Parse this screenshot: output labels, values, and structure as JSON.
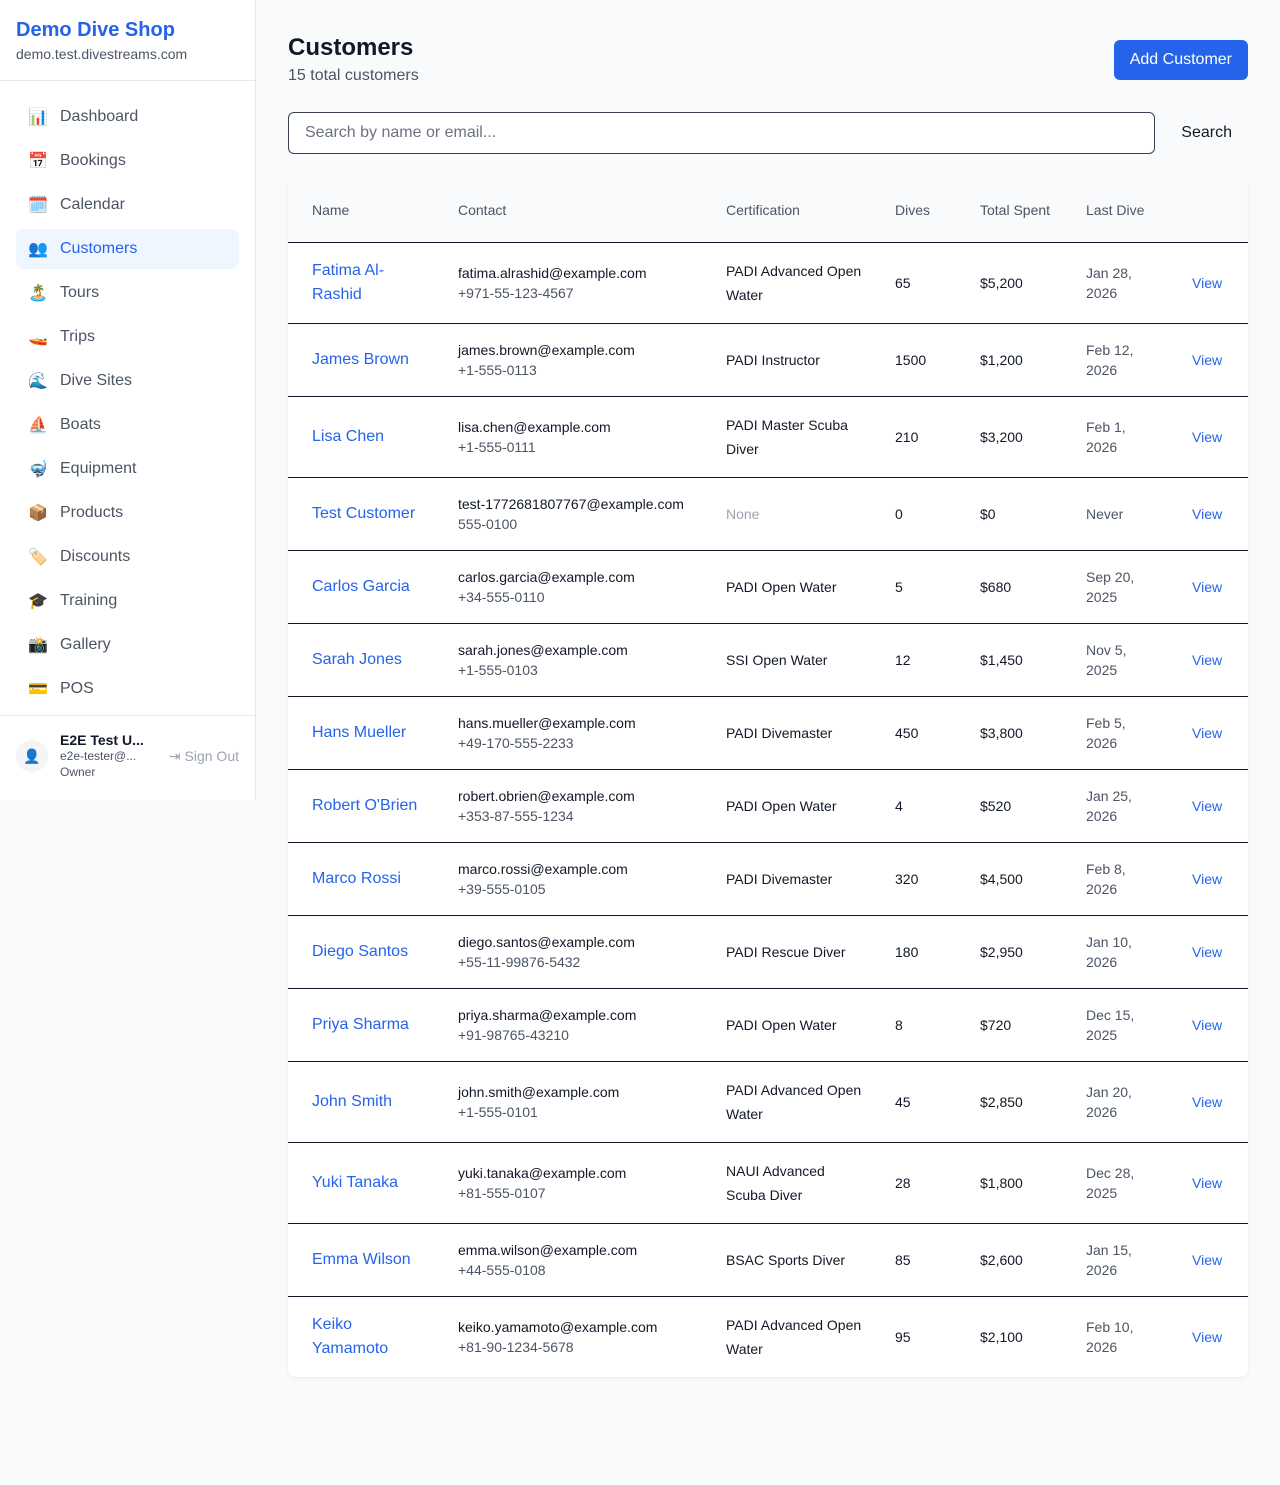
{
  "sidebar": {
    "brand": "Demo Dive Shop",
    "domain": "demo.test.divestreams.com",
    "items": [
      {
        "label": "Dashboard",
        "icon": "📊"
      },
      {
        "label": "Bookings",
        "icon": "📅"
      },
      {
        "label": "Calendar",
        "icon": "🗓️"
      },
      {
        "label": "Customers",
        "icon": "👥",
        "active": true
      },
      {
        "label": "Tours",
        "icon": "🏝️"
      },
      {
        "label": "Trips",
        "icon": "🚤"
      },
      {
        "label": "Dive Sites",
        "icon": "🌊"
      },
      {
        "label": "Boats",
        "icon": "⛵"
      },
      {
        "label": "Equipment",
        "icon": "🤿"
      },
      {
        "label": "Products",
        "icon": "📦"
      },
      {
        "label": "Discounts",
        "icon": "🏷️"
      },
      {
        "label": "Training",
        "icon": "🎓"
      },
      {
        "label": "Gallery",
        "icon": "📸"
      },
      {
        "label": "POS",
        "icon": "💳"
      }
    ],
    "user": {
      "name": "E2E Test U...",
      "email": "e2e-tester@...",
      "role": "Owner",
      "sign_out": "Sign Out"
    }
  },
  "header": {
    "title": "Customers",
    "subtitle": "15 total customers",
    "add_button": "Add Customer"
  },
  "search": {
    "placeholder": "Search by name or email...",
    "button": "Search"
  },
  "table": {
    "columns": [
      "Name",
      "Contact",
      "Certification",
      "Dives",
      "Total Spent",
      "Last Dive",
      ""
    ],
    "rows": [
      {
        "name": "Fatima Al-Rashid",
        "email": "fatima.alrashid@example.com",
        "phone": "+971-55-123-4567",
        "cert": "PADI Advanced Open Water",
        "dives": "65",
        "spent": "$5,200",
        "last": "Jan 28, 2026",
        "action": "View"
      },
      {
        "name": "James Brown",
        "email": "james.brown@example.com",
        "phone": "+1-555-0113",
        "cert": "PADI Instructor",
        "dives": "1500",
        "spent": "$1,200",
        "last": "Feb 12, 2026",
        "action": "View"
      },
      {
        "name": "Lisa Chen",
        "email": "lisa.chen@example.com",
        "phone": "+1-555-0111",
        "cert": "PADI Master Scuba Diver",
        "dives": "210",
        "spent": "$3,200",
        "last": "Feb 1, 2026",
        "action": "View"
      },
      {
        "name": "Test Customer",
        "email": "test-1772681807767@example.com",
        "phone": "555-0100",
        "cert": "None",
        "dives": "0",
        "spent": "$0",
        "last": "Never",
        "action": "View"
      },
      {
        "name": "Carlos Garcia",
        "email": "carlos.garcia@example.com",
        "phone": "+34-555-0110",
        "cert": "PADI Open Water",
        "dives": "5",
        "spent": "$680",
        "last": "Sep 20, 2025",
        "action": "View"
      },
      {
        "name": "Sarah Jones",
        "email": "sarah.jones@example.com",
        "phone": "+1-555-0103",
        "cert": "SSI Open Water",
        "dives": "12",
        "spent": "$1,450",
        "last": "Nov 5, 2025",
        "action": "View"
      },
      {
        "name": "Hans Mueller",
        "email": "hans.mueller@example.com",
        "phone": "+49-170-555-2233",
        "cert": "PADI Divemaster",
        "dives": "450",
        "spent": "$3,800",
        "last": "Feb 5, 2026",
        "action": "View"
      },
      {
        "name": "Robert O'Brien",
        "email": "robert.obrien@example.com",
        "phone": "+353-87-555-1234",
        "cert": "PADI Open Water",
        "dives": "4",
        "spent": "$520",
        "last": "Jan 25, 2026",
        "action": "View"
      },
      {
        "name": "Marco Rossi",
        "email": "marco.rossi@example.com",
        "phone": "+39-555-0105",
        "cert": "PADI Divemaster",
        "dives": "320",
        "spent": "$4,500",
        "last": "Feb 8, 2026",
        "action": "View"
      },
      {
        "name": "Diego Santos",
        "email": "diego.santos@example.com",
        "phone": "+55-11-99876-5432",
        "cert": "PADI Rescue Diver",
        "dives": "180",
        "spent": "$2,950",
        "last": "Jan 10, 2026",
        "action": "View"
      },
      {
        "name": "Priya Sharma",
        "email": "priya.sharma@example.com",
        "phone": "+91-98765-43210",
        "cert": "PADI Open Water",
        "dives": "8",
        "spent": "$720",
        "last": "Dec 15, 2025",
        "action": "View"
      },
      {
        "name": "John Smith",
        "email": "john.smith@example.com",
        "phone": "+1-555-0101",
        "cert": "PADI Advanced Open Water",
        "dives": "45",
        "spent": "$2,850",
        "last": "Jan 20, 2026",
        "action": "View"
      },
      {
        "name": "Yuki Tanaka",
        "email": "yuki.tanaka@example.com",
        "phone": "+81-555-0107",
        "cert": "NAUI Advanced Scuba Diver",
        "dives": "28",
        "spent": "$1,800",
        "last": "Dec 28, 2025",
        "action": "View"
      },
      {
        "name": "Emma Wilson",
        "email": "emma.wilson@example.com",
        "phone": "+44-555-0108",
        "cert": "BSAC Sports Diver",
        "dives": "85",
        "spent": "$2,600",
        "last": "Jan 15, 2026",
        "action": "View"
      },
      {
        "name": "Keiko Yamamoto",
        "email": "keiko.yamamoto@example.com",
        "phone": "+81-90-1234-5678",
        "cert": "PADI Advanced Open Water",
        "dives": "95",
        "spent": "$2,100",
        "last": "Feb 10, 2026",
        "action": "View"
      }
    ]
  }
}
